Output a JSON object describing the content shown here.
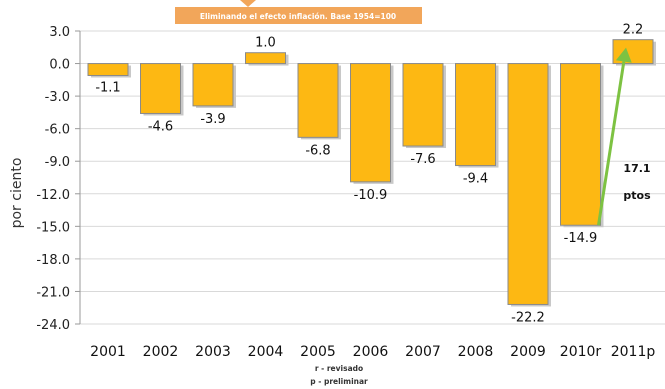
{
  "chart_data": {
    "type": "bar",
    "title": "Eliminando el efecto inflación. Base 1954=100",
    "ylabel": "por ciento",
    "xlabel": "",
    "categories": [
      "2001",
      "2002",
      "2003",
      "2004",
      "2005",
      "2006",
      "2007",
      "2008",
      "2009",
      "2010r",
      "2011p"
    ],
    "values": [
      -1.1,
      -4.6,
      -3.9,
      1.0,
      -6.8,
      -10.9,
      -7.6,
      -9.4,
      -22.2,
      -14.9,
      2.2
    ],
    "data_labels": [
      "-1.1",
      "-4.6",
      "-3.9",
      "1.0",
      "-6.8",
      "-10.9",
      "-7.6",
      "-9.4",
      "-22.2",
      "-14.9",
      "2.2"
    ],
    "ylim": [
      -24,
      3
    ],
    "yticks": [
      3,
      0,
      -3,
      -6,
      -9,
      -12,
      -15,
      -18,
      -21,
      -24
    ],
    "ytick_labels": [
      "3.0",
      "0.0",
      "-3.0",
      "-6.0",
      "-9.0",
      "-12.0",
      "-15.0",
      "-18.0",
      "-21.0",
      "-24.0"
    ],
    "grid": true,
    "annotation": {
      "line1": "17.1",
      "line2": "ptos"
    },
    "notes": [
      "r - revisado",
      "p - preliminar"
    ],
    "colors": {
      "bar": "#FDB813",
      "bar_stroke": "#8a8a8a",
      "arrow": "#7DC242",
      "banner": "#F2A65A",
      "grid": "#d9d9d9"
    }
  }
}
